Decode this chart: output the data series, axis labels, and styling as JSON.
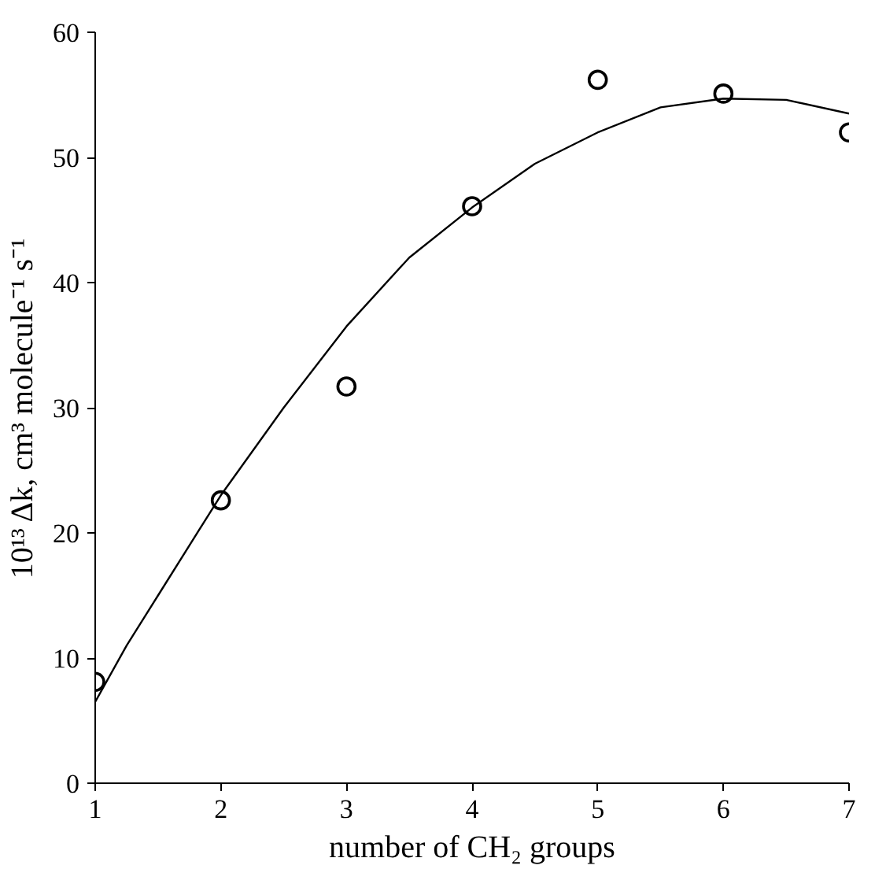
{
  "chart_data": {
    "type": "scatter",
    "xlabel": "number of CH₂ groups",
    "ylabel": "10¹³ Δk, cm³ molecule⁻¹ s⁻¹",
    "xlim": [
      1,
      7
    ],
    "ylim": [
      0,
      60
    ],
    "xticks": [
      1,
      2,
      3,
      4,
      5,
      6,
      7
    ],
    "yticks": [
      0,
      10,
      20,
      30,
      40,
      50,
      60
    ],
    "grid": false,
    "series": [
      {
        "marker": "circle",
        "color": "#000000",
        "x": [
          1,
          2,
          3,
          4,
          5,
          6,
          7
        ],
        "values": [
          8.1,
          22.6,
          31.7,
          46.1,
          56.2,
          55.1,
          52.0
        ]
      },
      {
        "type": "line",
        "line_style": "solid",
        "color": "#000000",
        "x": [
          1,
          1.25,
          1.5,
          1.75,
          2,
          2.5,
          3,
          3.5,
          4,
          4.5,
          5,
          5.5,
          6,
          6.5,
          7
        ],
        "values": [
          6.5,
          11,
          15,
          19,
          23,
          30,
          36.5,
          42,
          46,
          49.5,
          52,
          54,
          54.7,
          54.6,
          53.5
        ]
      }
    ]
  }
}
